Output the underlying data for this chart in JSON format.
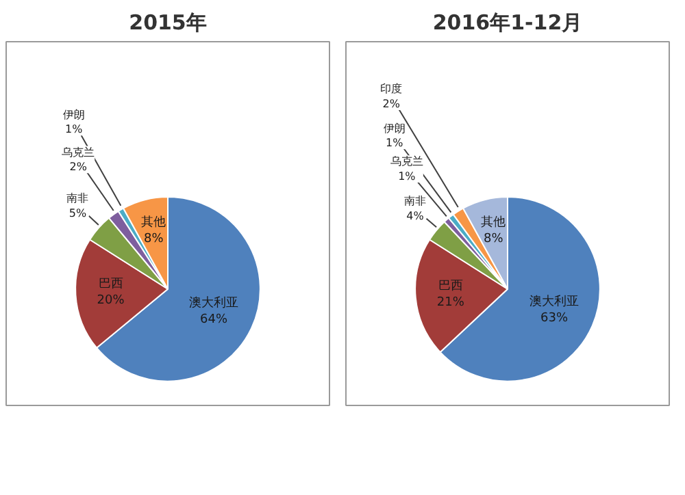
{
  "chart_data": [
    {
      "type": "pie",
      "title": "2015年",
      "categories": [
        "澳大利亚",
        "巴西",
        "南非",
        "乌克兰",
        "伊朗",
        "其他"
      ],
      "values": [
        64,
        20,
        5,
        2,
        1,
        8
      ],
      "value_labels": [
        "64%",
        "20%",
        "5%",
        "2%",
        "1%",
        "8%"
      ],
      "colors": [
        "#4f81bd",
        "#a23c39",
        "#7f9f45",
        "#7e5e9e",
        "#4bacc6",
        "#f79646"
      ],
      "legend": false
    },
    {
      "type": "pie",
      "title": "2016年1-12月",
      "categories": [
        "澳大利亚",
        "巴西",
        "南非",
        "乌克兰",
        "伊朗",
        "印度",
        "其他"
      ],
      "values": [
        63,
        21,
        4,
        1,
        1,
        2,
        8
      ],
      "value_labels": [
        "63%",
        "21%",
        "4%",
        "1%",
        "1%",
        "2%",
        "8%"
      ],
      "colors": [
        "#4f81bd",
        "#a23c39",
        "#7f9f45",
        "#7e5e9e",
        "#4bacc6",
        "#f79646",
        "#a5b8db"
      ],
      "legend": false
    }
  ]
}
